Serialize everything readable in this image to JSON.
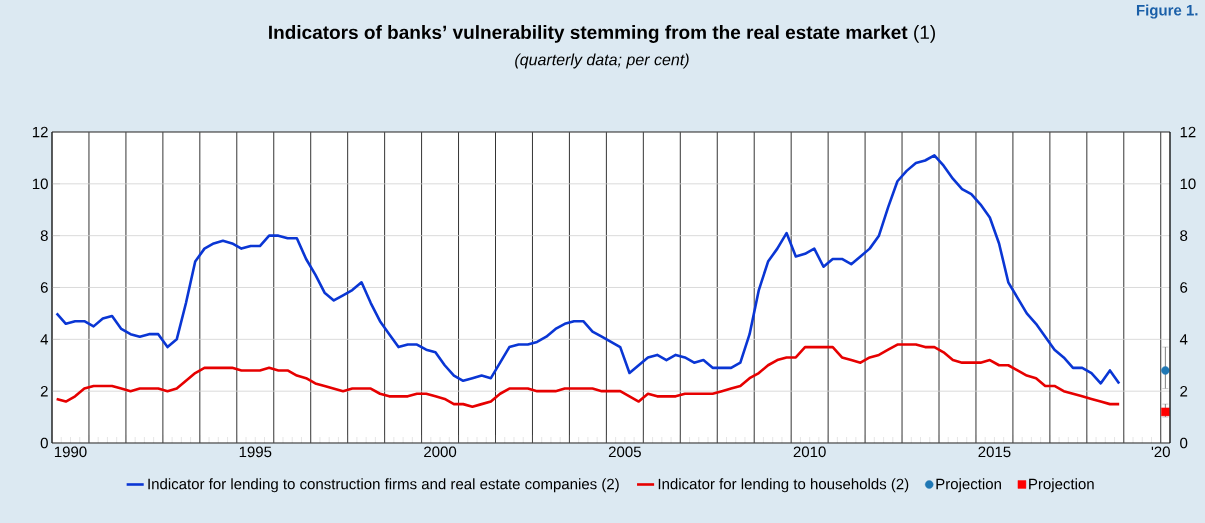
{
  "chart_data": {
    "type": "line",
    "title": "**Indicators of banks’ vulnerability stemming from the real estate market** (1)",
    "subtitle": "(quarterly data; per cent)",
    "annotations": [
      "Figure 1."
    ],
    "x": [
      1990.125,
      1990.375,
      1990.625,
      1990.875,
      1991.125,
      1991.375,
      1991.625,
      1991.875,
      1992.125,
      1992.375,
      1992.625,
      1992.875,
      1993.125,
      1993.375,
      1993.625,
      1993.875,
      1994.125,
      1994.375,
      1994.625,
      1994.875,
      1995.125,
      1995.375,
      1995.625,
      1995.875,
      1996.125,
      1996.375,
      1996.625,
      1996.875,
      1997.125,
      1997.375,
      1997.625,
      1997.875,
      1998.125,
      1998.375,
      1998.625,
      1998.875,
      1999.125,
      1999.375,
      1999.625,
      1999.875,
      2000.125,
      2000.375,
      2000.625,
      2000.875,
      2001.125,
      2001.375,
      2001.625,
      2001.875,
      2002.125,
      2002.375,
      2002.625,
      2002.875,
      2003.125,
      2003.375,
      2003.625,
      2003.875,
      2004.125,
      2004.375,
      2004.625,
      2004.875,
      2005.125,
      2005.375,
      2005.625,
      2005.875,
      2006.125,
      2006.375,
      2006.625,
      2006.875,
      2007.125,
      2007.375,
      2007.625,
      2007.875,
      2008.125,
      2008.375,
      2008.625,
      2008.875,
      2009.125,
      2009.375,
      2009.625,
      2009.875,
      2010.125,
      2010.375,
      2010.625,
      2010.875,
      2011.125,
      2011.375,
      2011.625,
      2011.875,
      2012.125,
      2012.375,
      2012.625,
      2012.875,
      2013.125,
      2013.375,
      2013.625,
      2013.875,
      2014.125,
      2014.375,
      2014.625,
      2014.875,
      2015.125,
      2015.375,
      2015.625,
      2015.875,
      2016.125,
      2016.375,
      2016.625,
      2016.875,
      2017.125,
      2017.375,
      2017.625,
      2017.875,
      2018.125,
      2018.375,
      2018.625,
      2018.875
    ],
    "series": [
      {
        "name": "Indicator for lending to construction firms and real estate companies (2)",
        "color": "#0a36d4",
        "values": [
          5.0,
          4.6,
          4.7,
          4.7,
          4.5,
          4.8,
          4.9,
          4.4,
          4.2,
          4.1,
          4.2,
          4.2,
          3.7,
          4.0,
          5.4,
          7.0,
          7.5,
          7.7,
          7.8,
          7.7,
          7.5,
          7.6,
          7.6,
          8.0,
          8.0,
          7.9,
          7.9,
          7.1,
          6.5,
          5.8,
          5.5,
          5.7,
          5.9,
          6.2,
          5.4,
          4.7,
          4.2,
          3.7,
          3.8,
          3.8,
          3.6,
          3.5,
          3.0,
          2.6,
          2.4,
          2.5,
          2.6,
          2.5,
          3.1,
          3.7,
          3.8,
          3.8,
          3.9,
          4.1,
          4.4,
          4.6,
          4.7,
          4.7,
          4.3,
          4.1,
          3.9,
          3.7,
          2.7,
          3.0,
          3.3,
          3.4,
          3.2,
          3.4,
          3.3,
          3.1,
          3.2,
          2.9,
          2.9,
          2.9,
          3.1,
          4.2,
          5.9,
          7.0,
          7.5,
          8.1,
          7.2,
          7.3,
          7.5,
          6.8,
          7.1,
          7.1,
          6.9,
          7.2,
          7.5,
          8.0,
          9.1,
          10.1,
          10.5,
          10.8,
          10.9,
          11.1,
          10.7,
          10.2,
          9.8,
          9.6,
          9.2,
          8.7,
          7.7,
          6.2,
          5.6,
          5.0,
          4.6,
          4.1,
          3.6,
          3.3,
          2.9,
          2.9,
          2.7,
          2.3,
          2.8,
          2.3
        ]
      },
      {
        "name": "Indicator for lending to households (2)",
        "color": "#e60000",
        "values": [
          1.7,
          1.6,
          1.8,
          2.1,
          2.2,
          2.2,
          2.2,
          2.1,
          2.0,
          2.1,
          2.1,
          2.1,
          2.0,
          2.1,
          2.4,
          2.7,
          2.9,
          2.9,
          2.9,
          2.9,
          2.8,
          2.8,
          2.8,
          2.9,
          2.8,
          2.8,
          2.6,
          2.5,
          2.3,
          2.2,
          2.1,
          2.0,
          2.1,
          2.1,
          2.1,
          1.9,
          1.8,
          1.8,
          1.8,
          1.9,
          1.9,
          1.8,
          1.7,
          1.5,
          1.5,
          1.4,
          1.5,
          1.6,
          1.9,
          2.1,
          2.1,
          2.1,
          2.0,
          2.0,
          2.0,
          2.1,
          2.1,
          2.1,
          2.1,
          2.0,
          2.0,
          2.0,
          1.8,
          1.6,
          1.9,
          1.8,
          1.8,
          1.8,
          1.9,
          1.9,
          1.9,
          1.9,
          2.0,
          2.1,
          2.2,
          2.5,
          2.7,
          3.0,
          3.2,
          3.3,
          3.3,
          3.7,
          3.7,
          3.7,
          3.7,
          3.3,
          3.2,
          3.1,
          3.3,
          3.4,
          3.6,
          3.8,
          3.8,
          3.8,
          3.7,
          3.7,
          3.5,
          3.2,
          3.1,
          3.1,
          3.1,
          3.2,
          3.0,
          3.0,
          2.8,
          2.6,
          2.5,
          2.2,
          2.2,
          2.0,
          1.9,
          1.8,
          1.7,
          1.6,
          1.5,
          1.5
        ]
      },
      {
        "name": "Projection",
        "type": "scatter",
        "marker": "circle",
        "color": "#1f77b4",
        "x": [
          2020.125
        ],
        "values": [
          2.8
        ],
        "errors": [
          [
            2.1,
            3.7
          ]
        ]
      },
      {
        "name": "Projection",
        "type": "scatter",
        "marker": "square",
        "color": "#ff0000",
        "x": [
          2020.125
        ],
        "values": [
          1.2
        ],
        "errors": [
          [
            1.0,
            1.5
          ]
        ]
      }
    ],
    "xlim": [
      1990,
      2020.25
    ],
    "xticks": [
      {
        "value": 1990,
        "label": null
      },
      {
        "value": 1991,
        "label": null
      },
      {
        "value": 1992,
        "label": null
      },
      {
        "value": 1993,
        "label": null
      },
      {
        "value": 1994,
        "label": null
      },
      {
        "value": 1995,
        "label": null
      },
      {
        "value": 1996,
        "label": null
      },
      {
        "value": 1997,
        "label": null
      },
      {
        "value": 1998,
        "label": null
      },
      {
        "value": 1999,
        "label": null
      },
      {
        "value": 2000,
        "label": null
      },
      {
        "value": 2001,
        "label": null
      },
      {
        "value": 2002,
        "label": null
      },
      {
        "value": 2003,
        "label": null
      },
      {
        "value": 2004,
        "label": null
      },
      {
        "value": 2005,
        "label": null
      },
      {
        "value": 2006,
        "label": null
      },
      {
        "value": 2007,
        "label": null
      },
      {
        "value": 2008,
        "label": null
      },
      {
        "value": 2009,
        "label": null
      },
      {
        "value": 2010,
        "label": null
      },
      {
        "value": 2011,
        "label": null
      },
      {
        "value": 2012,
        "label": null
      },
      {
        "value": 2013,
        "label": null
      },
      {
        "value": 2014,
        "label": null
      },
      {
        "value": 2015,
        "label": null
      },
      {
        "value": 2016,
        "label": null
      },
      {
        "value": 2017,
        "label": null
      },
      {
        "value": 2018,
        "label": null
      },
      {
        "value": 2019,
        "label": null
      },
      {
        "value": 2020,
        "label": null
      },
      {
        "value": 1990.5,
        "label": "1990"
      },
      {
        "value": 1995.5,
        "label": "1995"
      },
      {
        "value": 2000.5,
        "label": "2000"
      },
      {
        "value": 2005.5,
        "label": "2005"
      },
      {
        "value": 2010.5,
        "label": "2010"
      },
      {
        "value": 2015.5,
        "label": "2015"
      },
      {
        "value": 2020,
        "label": "'20"
      }
    ],
    "ylim": [
      0,
      12
    ],
    "yticks": [
      0,
      2,
      4,
      6,
      8,
      10,
      12
    ],
    "y2lim": [
      0,
      12
    ],
    "y2ticks": [
      0,
      2,
      4,
      6,
      8,
      10,
      12
    ],
    "grid": true,
    "legend": "bottom"
  }
}
